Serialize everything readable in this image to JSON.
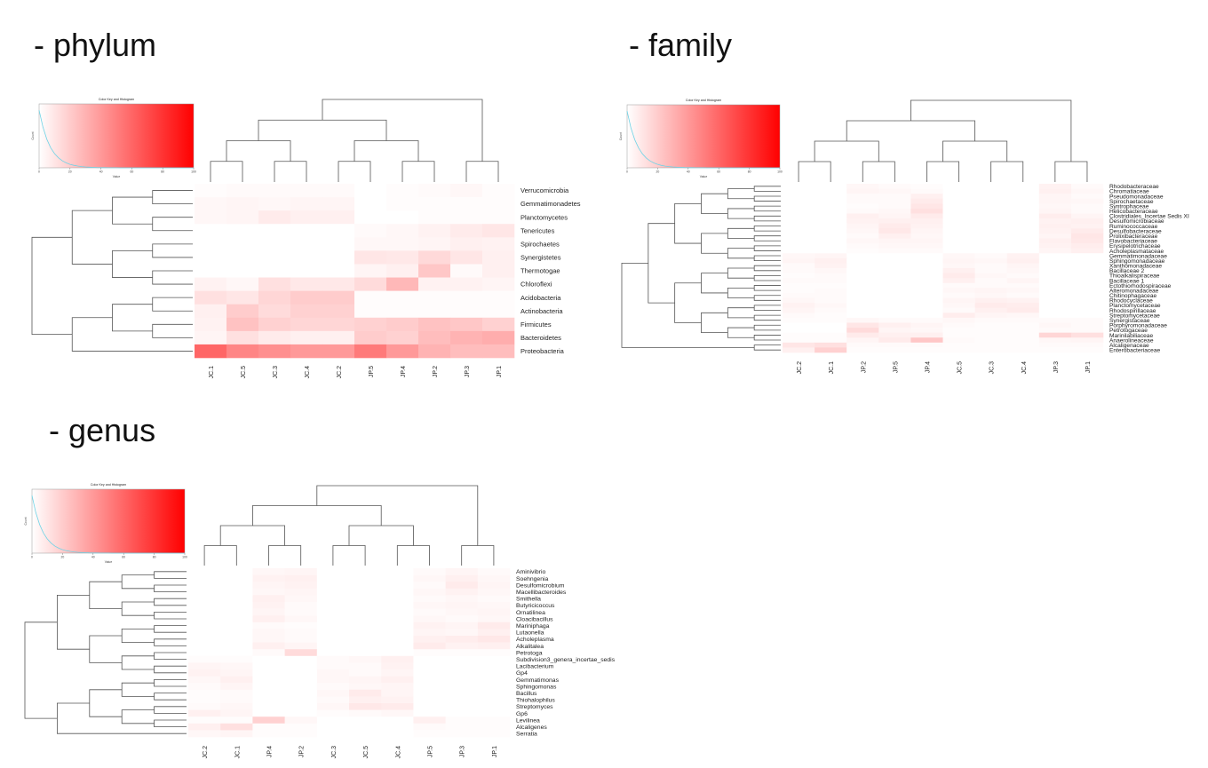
{
  "titles": {
    "phylum": "- phylum",
    "family": "- family",
    "genus": "- genus"
  },
  "colors": {
    "low": "#ffffff",
    "high": "#ff0000",
    "key_line": "#6fd3e6",
    "dendro": "#555555"
  },
  "color_key": {
    "title": "Color Key\nand Histogram",
    "xlabel": "Value",
    "ylabel": "Count",
    "x_ticks": [
      "0",
      "20",
      "40",
      "60",
      "80",
      "100"
    ]
  },
  "chart_data": [
    {
      "type": "heatmap",
      "name": "phylum",
      "columns": [
        "JC.1",
        "JC.5",
        "JC.3",
        "JC.4",
        "JC.2",
        "JP.5",
        "JP.4",
        "JP.2",
        "JP.3",
        "JP.1"
      ],
      "rows": [
        "Verrucomicrobia",
        "Gemmatimonadetes",
        "Planctomycetes",
        "Tenericutes",
        "Spirochaetes",
        "Synergistetes",
        "Thermotogae",
        "Chloroflexi",
        "Acidobacteria",
        "Actinobacteria",
        "Firmicutes",
        "Bacteroidetes",
        "Proteobacteria"
      ],
      "values": [
        [
          1,
          2,
          2,
          2,
          2,
          0,
          1,
          2,
          3,
          1
        ],
        [
          3,
          4,
          3,
          4,
          4,
          0,
          1,
          1,
          1,
          1
        ],
        [
          3,
          4,
          8,
          6,
          6,
          0,
          0,
          1,
          1,
          1
        ],
        [
          0,
          0,
          0,
          0,
          0,
          2,
          3,
          5,
          8,
          10
        ],
        [
          0,
          0,
          0,
          0,
          0,
          3,
          3,
          4,
          6,
          5
        ],
        [
          0,
          0,
          0,
          0,
          0,
          10,
          9,
          15,
          10,
          6
        ],
        [
          0,
          0,
          0,
          0,
          0,
          4,
          6,
          22,
          2,
          6
        ],
        [
          5,
          3,
          12,
          9,
          9,
          14,
          28,
          5,
          5,
          4
        ],
        [
          12,
          10,
          16,
          20,
          20,
          1,
          1,
          1,
          1,
          1
        ],
        [
          6,
          20,
          14,
          18,
          18,
          1,
          1,
          1,
          1,
          1
        ],
        [
          5,
          24,
          18,
          16,
          16,
          18,
          20,
          24,
          22,
          18
        ],
        [
          4,
          12,
          8,
          6,
          6,
          20,
          18,
          26,
          30,
          32
        ],
        [
          60,
          48,
          44,
          40,
          40,
          52,
          40,
          30,
          26,
          26
        ]
      ],
      "color_range": [
        0,
        100
      ]
    },
    {
      "type": "heatmap",
      "name": "family",
      "columns": [
        "JC.2",
        "JC.1",
        "JP.2",
        "JP.5",
        "JP.4",
        "JC.5",
        "JC.3",
        "JC.4",
        "JP.3",
        "JP.1"
      ],
      "rows": [
        "Rhodobacteraceae",
        "Chromatiaceae",
        "Pseudomonadaceae",
        "Spirochaetaceae",
        "Syntrophaceae",
        "Helicobacteraceae",
        "Clostridiales_Incertae Sedis XI",
        "Desulfomicrobiaceae",
        "Ruminococcaceae",
        "Desulfobacteraceae",
        "Prolixibacteraceae",
        "Flavobacteriaceae",
        "Erysipelotrichaceae",
        "Acholeplasmataceae",
        "Gemmatimonadaceae",
        "Sphingomonadaceae",
        "Xanthomonadaceae",
        "Bacillaceae 2",
        "Thioalkalispiraceae",
        "Bacillaceae 1",
        "Ectothiorhodospiraceae",
        "Alteromonadaceae",
        "Chitinophagaceae",
        "Rhodocyclaceae",
        "Planctomycetaceae",
        "Rhodospirillaceae",
        "Streptomycetaceae",
        "Synergistaceae",
        "Porphyromonadaceae",
        "Petrotogaceae",
        "Marinilabiliaceae",
        "Anaerolineaceae",
        "Alcaligenaceae",
        "Enterobacteriaceae"
      ],
      "values": [
        [
          0,
          0,
          3,
          2,
          1,
          0,
          0,
          0,
          5,
          2
        ],
        [
          0,
          0,
          4,
          3,
          2,
          0,
          0,
          0,
          6,
          3
        ],
        [
          0,
          0,
          2,
          2,
          6,
          0,
          0,
          0,
          4,
          2
        ],
        [
          0,
          0,
          2,
          2,
          8,
          0,
          0,
          0,
          4,
          3
        ],
        [
          0,
          0,
          1,
          2,
          10,
          0,
          0,
          0,
          3,
          2
        ],
        [
          0,
          0,
          2,
          3,
          12,
          0,
          0,
          0,
          4,
          2
        ],
        [
          0,
          0,
          6,
          4,
          8,
          0,
          0,
          0,
          7,
          4
        ],
        [
          0,
          0,
          5,
          6,
          6,
          0,
          0,
          0,
          5,
          6
        ],
        [
          0,
          0,
          4,
          8,
          5,
          0,
          0,
          0,
          6,
          5
        ],
        [
          0,
          0,
          3,
          9,
          4,
          0,
          0,
          0,
          5,
          8
        ],
        [
          0,
          0,
          2,
          6,
          3,
          0,
          0,
          0,
          4,
          10
        ],
        [
          0,
          0,
          3,
          4,
          4,
          0,
          0,
          0,
          6,
          9
        ],
        [
          0,
          0,
          2,
          3,
          3,
          0,
          0,
          0,
          5,
          7
        ],
        [
          0,
          0,
          1,
          2,
          2,
          0,
          0,
          0,
          4,
          6
        ],
        [
          3,
          4,
          0,
          0,
          0,
          3,
          2,
          5,
          0,
          0
        ],
        [
          4,
          6,
          0,
          0,
          0,
          4,
          3,
          6,
          0,
          0
        ],
        [
          2,
          5,
          0,
          0,
          0,
          3,
          2,
          4,
          0,
          0
        ],
        [
          2,
          3,
          0,
          0,
          0,
          6,
          2,
          3,
          0,
          0
        ],
        [
          1,
          2,
          0,
          0,
          0,
          8,
          3,
          2,
          0,
          0
        ],
        [
          2,
          2,
          0,
          0,
          0,
          6,
          2,
          4,
          0,
          0
        ],
        [
          1,
          1,
          0,
          0,
          0,
          2,
          2,
          2,
          0,
          0
        ],
        [
          1,
          2,
          0,
          0,
          0,
          3,
          4,
          3,
          0,
          0
        ],
        [
          2,
          2,
          0,
          0,
          0,
          2,
          3,
          2,
          0,
          0
        ],
        [
          3,
          2,
          0,
          0,
          0,
          4,
          6,
          5,
          0,
          0
        ],
        [
          5,
          3,
          0,
          0,
          0,
          3,
          8,
          7,
          0,
          0
        ],
        [
          4,
          2,
          0,
          0,
          0,
          2,
          6,
          8,
          0,
          0
        ],
        [
          2,
          1,
          0,
          0,
          0,
          7,
          4,
          3,
          0,
          0
        ],
        [
          1,
          1,
          3,
          2,
          2,
          3,
          2,
          2,
          2,
          2
        ],
        [
          0,
          0,
          10,
          6,
          4,
          2,
          1,
          1,
          3,
          2
        ],
        [
          0,
          0,
          14,
          4,
          3,
          1,
          1,
          1,
          2,
          2
        ],
        [
          1,
          1,
          8,
          6,
          6,
          1,
          1,
          1,
          16,
          12
        ],
        [
          1,
          1,
          4,
          8,
          22,
          2,
          1,
          1,
          3,
          4
        ],
        [
          10,
          12,
          2,
          2,
          2,
          1,
          1,
          1,
          2,
          2
        ],
        [
          6,
          18,
          1,
          1,
          1,
          1,
          1,
          1,
          1,
          1
        ]
      ],
      "color_range": [
        0,
        100
      ]
    },
    {
      "type": "heatmap",
      "name": "genus",
      "columns": [
        "JC.2",
        "JC.1",
        "JP.4",
        "JP.2",
        "JC.3",
        "JC.5",
        "JC.4",
        "JP.5",
        "JP.3",
        "JP.1"
      ],
      "rows": [
        "Aminivibrio",
        "Soehngenia",
        "Desulfomicrobium",
        "Macellibacteroides",
        "Smithella",
        "Butyricicoccus",
        "Ornatilinea",
        "Cloacibacillus",
        "Mariniphaga",
        "Lutaonella",
        "Acholeplasma",
        "Alkalitalea",
        "Petrotoga",
        "Subdivision3_genera_incertae_sedis",
        "Lacibacterium",
        "Gp4",
        "Gemmatimonas",
        "Sphingomonas",
        "Bacillus",
        "Thiohalophilus",
        "Streptomyces",
        "Gp6",
        "Levilinea",
        "Alcaligenes",
        "Serratia"
      ],
      "values": [
        [
          0,
          0,
          3,
          4,
          0,
          0,
          0,
          2,
          4,
          2
        ],
        [
          0,
          0,
          5,
          6,
          0,
          0,
          0,
          3,
          6,
          3
        ],
        [
          0,
          0,
          4,
          5,
          0,
          0,
          0,
          2,
          8,
          4
        ],
        [
          0,
          0,
          3,
          4,
          0,
          0,
          0,
          3,
          5,
          3
        ],
        [
          0,
          0,
          6,
          3,
          0,
          0,
          0,
          2,
          3,
          2
        ],
        [
          0,
          0,
          5,
          2,
          0,
          0,
          0,
          3,
          4,
          3
        ],
        [
          0,
          0,
          4,
          2,
          0,
          0,
          0,
          2,
          3,
          4
        ],
        [
          0,
          0,
          6,
          3,
          0,
          0,
          0,
          3,
          2,
          3
        ],
        [
          0,
          0,
          2,
          1,
          0,
          0,
          0,
          5,
          4,
          8
        ],
        [
          0,
          0,
          3,
          2,
          0,
          0,
          0,
          4,
          3,
          6
        ],
        [
          0,
          0,
          3,
          2,
          0,
          0,
          0,
          6,
          7,
          9
        ],
        [
          0,
          0,
          6,
          4,
          0,
          0,
          0,
          8,
          5,
          6
        ],
        [
          0,
          0,
          2,
          14,
          0,
          0,
          0,
          1,
          1,
          1
        ],
        [
          1,
          1,
          0,
          0,
          2,
          3,
          6,
          0,
          0,
          0
        ],
        [
          4,
          3,
          0,
          0,
          2,
          2,
          5,
          0,
          0,
          0
        ],
        [
          5,
          4,
          0,
          0,
          3,
          2,
          4,
          0,
          0,
          0
        ],
        [
          3,
          6,
          0,
          0,
          3,
          4,
          6,
          0,
          0,
          0
        ],
        [
          2,
          4,
          0,
          0,
          2,
          3,
          4,
          0,
          0,
          0
        ],
        [
          1,
          2,
          0,
          0,
          3,
          8,
          4,
          0,
          0,
          0
        ],
        [
          1,
          2,
          0,
          0,
          2,
          6,
          5,
          0,
          0,
          0
        ],
        [
          2,
          3,
          0,
          0,
          3,
          9,
          8,
          0,
          0,
          0
        ],
        [
          6,
          4,
          0,
          0,
          1,
          2,
          3,
          0,
          0,
          0
        ],
        [
          1,
          1,
          18,
          3,
          0,
          0,
          0,
          6,
          1,
          1
        ],
        [
          6,
          12,
          1,
          1,
          0,
          0,
          0,
          2,
          1,
          1
        ],
        [
          3,
          4,
          1,
          1,
          0,
          0,
          0,
          1,
          1,
          1
        ]
      ],
      "color_range": [
        0,
        100
      ]
    }
  ]
}
